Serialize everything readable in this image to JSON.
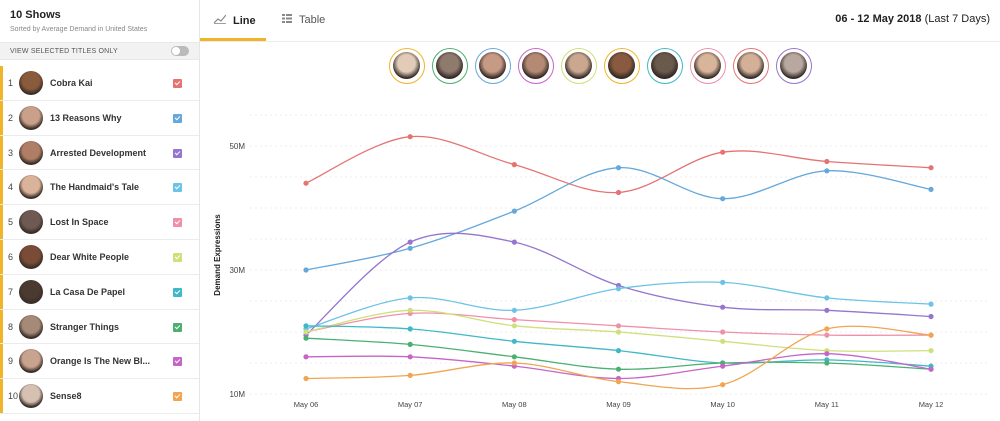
{
  "sidebar": {
    "title": "10 Shows",
    "subtitle": "Sorted by Average Demand in United States",
    "toggle_label": "VIEW SELECTED TITLES ONLY",
    "shows": [
      {
        "rank": "1",
        "name": "Cobra Kai",
        "color": "#e57373"
      },
      {
        "rank": "2",
        "name": "13 Reasons Why",
        "color": "#64a8dc"
      },
      {
        "rank": "3",
        "name": "Arrested Development",
        "color": "#9575cd"
      },
      {
        "rank": "4",
        "name": "The Handmaid's Tale",
        "color": "#6cc3e6"
      },
      {
        "rank": "5",
        "name": "Lost In Space",
        "color": "#f08fa8"
      },
      {
        "rank": "6",
        "name": "Dear White People",
        "color": "#cfe07a"
      },
      {
        "rank": "7",
        "name": "La Casa De Papel",
        "color": "#3fb8c8"
      },
      {
        "rank": "8",
        "name": "Stranger Things",
        "color": "#4caf72"
      },
      {
        "rank": "9",
        "name": "Orange Is The New Bl...",
        "color": "#c765c7"
      },
      {
        "rank": "10",
        "name": "Sense8",
        "color": "#f0a552"
      }
    ]
  },
  "header": {
    "tab_line": "Line",
    "tab_table": "Table",
    "date_range_bold": "06 - 12 May 2018",
    "date_range_light": " (Last 7 Days)"
  },
  "avatars": [
    {
      "ring": "#f0b429"
    },
    {
      "ring": "#4caf72"
    },
    {
      "ring": "#64a8dc"
    },
    {
      "ring": "#c765c7"
    },
    {
      "ring": "#cfe07a"
    },
    {
      "ring": "#f0b429"
    },
    {
      "ring": "#3fb8c8"
    },
    {
      "ring": "#f08fa8"
    },
    {
      "ring": "#e57373"
    },
    {
      "ring": "#9575cd"
    }
  ],
  "chart_data": {
    "type": "line",
    "ylabel": "Demand Expressions",
    "y_ticks": [
      "10M",
      "30M",
      "50M"
    ],
    "y_tick_values": [
      10,
      30,
      50
    ],
    "ylim": [
      10,
      55
    ],
    "categories": [
      "May 06",
      "May 07",
      "May 08",
      "May 09",
      "May 10",
      "May 11",
      "May 12"
    ],
    "grid": true,
    "series": [
      {
        "name": "Cobra Kai",
        "color": "#e57373",
        "values": [
          44.0,
          51.5,
          47.0,
          42.5,
          49.0,
          47.5,
          46.5
        ]
      },
      {
        "name": "13 Reasons Why",
        "color": "#64a8dc",
        "values": [
          30.0,
          33.5,
          39.5,
          46.5,
          41.5,
          46.0,
          43.0
        ]
      },
      {
        "name": "Arrested Development",
        "color": "#9575cd",
        "values": [
          19.5,
          34.5,
          34.5,
          27.5,
          24.0,
          23.5,
          22.5
        ]
      },
      {
        "name": "The Handmaid's Tale",
        "color": "#6cc3e6",
        "values": [
          20.5,
          25.5,
          23.5,
          27.0,
          28.0,
          25.5,
          24.5
        ]
      },
      {
        "name": "Lost In Space",
        "color": "#f08fa8",
        "values": [
          20.0,
          23.0,
          22.0,
          21.0,
          20.0,
          19.5,
          19.5
        ]
      },
      {
        "name": "Dear White People",
        "color": "#cfe07a",
        "values": [
          20.0,
          23.5,
          21.0,
          20.0,
          18.5,
          17.0,
          17.0
        ]
      },
      {
        "name": "La Casa De Papel",
        "color": "#3fb8c8",
        "values": [
          21.0,
          20.5,
          18.5,
          17.0,
          15.0,
          15.5,
          14.5
        ]
      },
      {
        "name": "Stranger Things",
        "color": "#4caf72",
        "values": [
          19.0,
          18.0,
          16.0,
          14.0,
          15.0,
          15.0,
          14.0
        ]
      },
      {
        "name": "Orange Is The New Black",
        "color": "#c765c7",
        "values": [
          16.0,
          16.0,
          14.5,
          12.5,
          14.5,
          16.5,
          14.0
        ]
      },
      {
        "name": "Sense8",
        "color": "#f0a552",
        "values": [
          12.5,
          13.0,
          15.0,
          12.0,
          11.5,
          20.5,
          19.5
        ]
      }
    ]
  }
}
